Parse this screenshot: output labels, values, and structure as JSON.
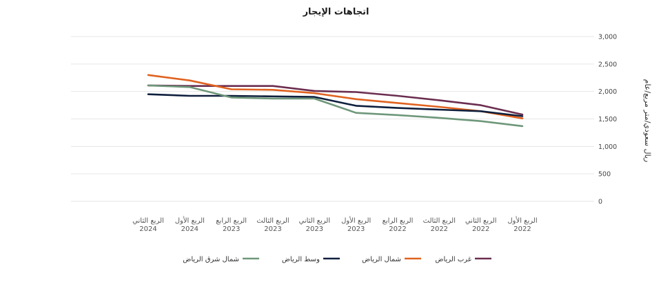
{
  "chart_data": {
    "type": "line",
    "title": "اتجاهات الإيجار",
    "ylabel": "ريال سعودي/متر مربع/عام",
    "ylim": [
      0,
      3000
    ],
    "yticks": [
      "0",
      "500",
      "1,000",
      "1,500",
      "2,000",
      "2,500",
      "3,000"
    ],
    "ytick_values": [
      0,
      500,
      1000,
      1500,
      2000,
      2500,
      3000
    ],
    "grid": true,
    "legend_position": "bottom",
    "categories": [
      {
        "quarter": "الربع الثاني",
        "year": "2024"
      },
      {
        "quarter": "الربع الأول",
        "year": "2024"
      },
      {
        "quarter": "الربع الرابع",
        "year": "2023"
      },
      {
        "quarter": "الربع الثالث",
        "year": "2023"
      },
      {
        "quarter": "الربع الثاني",
        "year": "2023"
      },
      {
        "quarter": "الربع الأول",
        "year": "2023"
      },
      {
        "quarter": "الربع الرابع",
        "year": "2022"
      },
      {
        "quarter": "الربع الثالث",
        "year": "2022"
      },
      {
        "quarter": "الربع الثاني",
        "year": "2022"
      },
      {
        "quarter": "الربع الأول",
        "year": "2022"
      }
    ],
    "series": [
      {
        "name": "غرب الرياض",
        "color": "#6b2d4f",
        "values": [
          2110,
          2100,
          2100,
          2100,
          2010,
          1990,
          1920,
          1840,
          1750,
          1580
        ]
      },
      {
        "name": "شمال الرياض",
        "color": "#e0621f",
        "values": [
          2300,
          2200,
          2040,
          2030,
          1970,
          1860,
          1790,
          1720,
          1640,
          1510
        ]
      },
      {
        "name": "وسط الرياض",
        "color": "#0e1f3d",
        "values": [
          1950,
          1920,
          1920,
          1910,
          1900,
          1740,
          1700,
          1670,
          1640,
          1550
        ]
      },
      {
        "name": "شمال شرق الرياض",
        "color": "#6e977a",
        "values": [
          2110,
          2080,
          1890,
          1870,
          1870,
          1610,
          1570,
          1520,
          1460,
          1370
        ]
      }
    ]
  }
}
